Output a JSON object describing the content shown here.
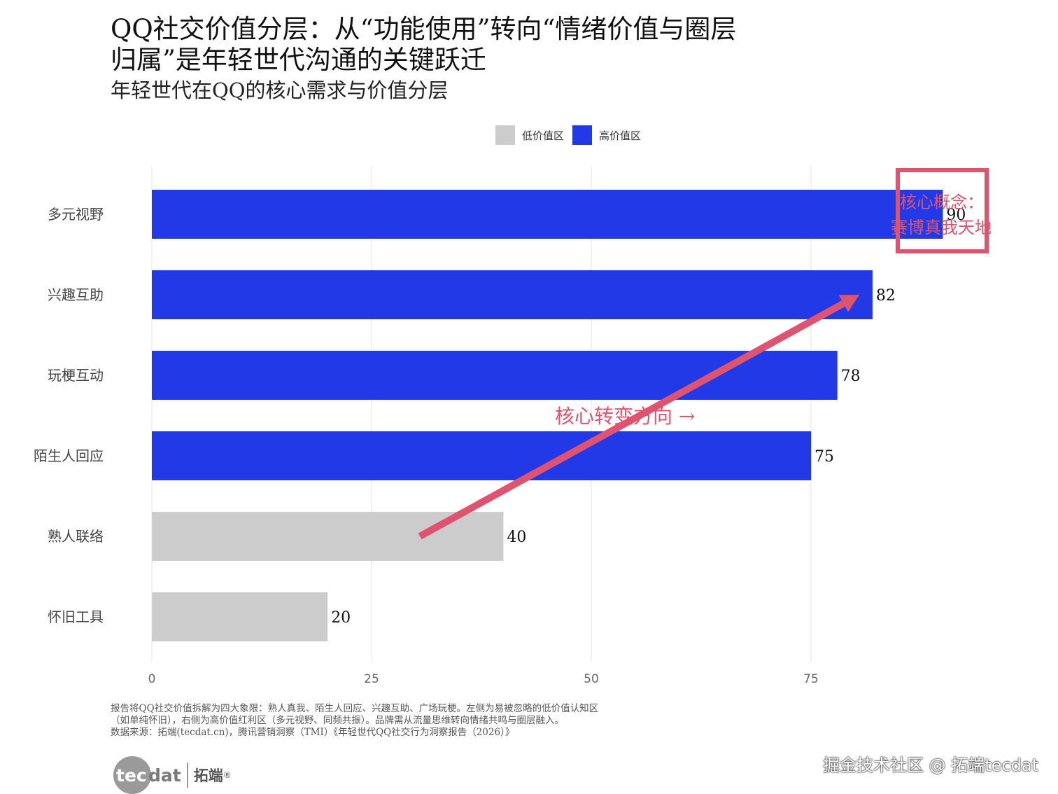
{
  "title": "QQ社交价值分层：从“功能使用”转向“情绪价值与圈层归属”是年轻世代沟通的关键跃迁",
  "subtitle": "年轻世代在QQ的核心需求与价值分层",
  "colors": {
    "low": "#cccccc",
    "high": "#2139e6",
    "accent": "#e0536e"
  },
  "chart_data": {
    "type": "bar",
    "orientation": "horizontal",
    "categories": [
      "多元视野",
      "兴趣互助",
      "玩梗互动",
      "陌生人回应",
      "熟人联络",
      "怀旧工具"
    ],
    "values": [
      90,
      82,
      78,
      75,
      40,
      20
    ],
    "groups": [
      "高价值区",
      "高价值区",
      "高价值区",
      "高价值区",
      "低价值区",
      "低价值区"
    ],
    "legend": [
      "低价值区",
      "高价值区"
    ],
    "legend_position": "top",
    "xticks": [
      0,
      25,
      50,
      75
    ],
    "xlim": [
      0,
      96
    ],
    "grid": true,
    "annotations": {
      "box_text_line1": "核心概念：",
      "box_text_line2": "赛博真我天地",
      "arrow_text": "核心转变方向 →",
      "arrow_from": {
        "category": "熟人联络",
        "x": 30.5
      },
      "arrow_to": {
        "category": "兴趣互助",
        "x": 80.5
      }
    }
  },
  "footnote": {
    "text": "报告将QQ社交价值拆解为四大象限：熟人真我、陌生人回应、兴趣互助、广场玩梗。左侧为易被忽略的低价值认知区（如单纯怀旧），右侧为高价值红利区（多元视野、同频共振）。品牌需从流量思维转向情绪共鸣与圈层融入。",
    "source": "数据来源：拓端(tecdat.cn)，腾讯营销洞察（TMI）《年轻世代QQ社交行为洞察报告（2026）》"
  },
  "logo": {
    "tec": "tec",
    "dat": "dat",
    "cn": "拓端",
    "reg": "®"
  },
  "watermark": "掘金技术社区 @ 拓端tecdat"
}
